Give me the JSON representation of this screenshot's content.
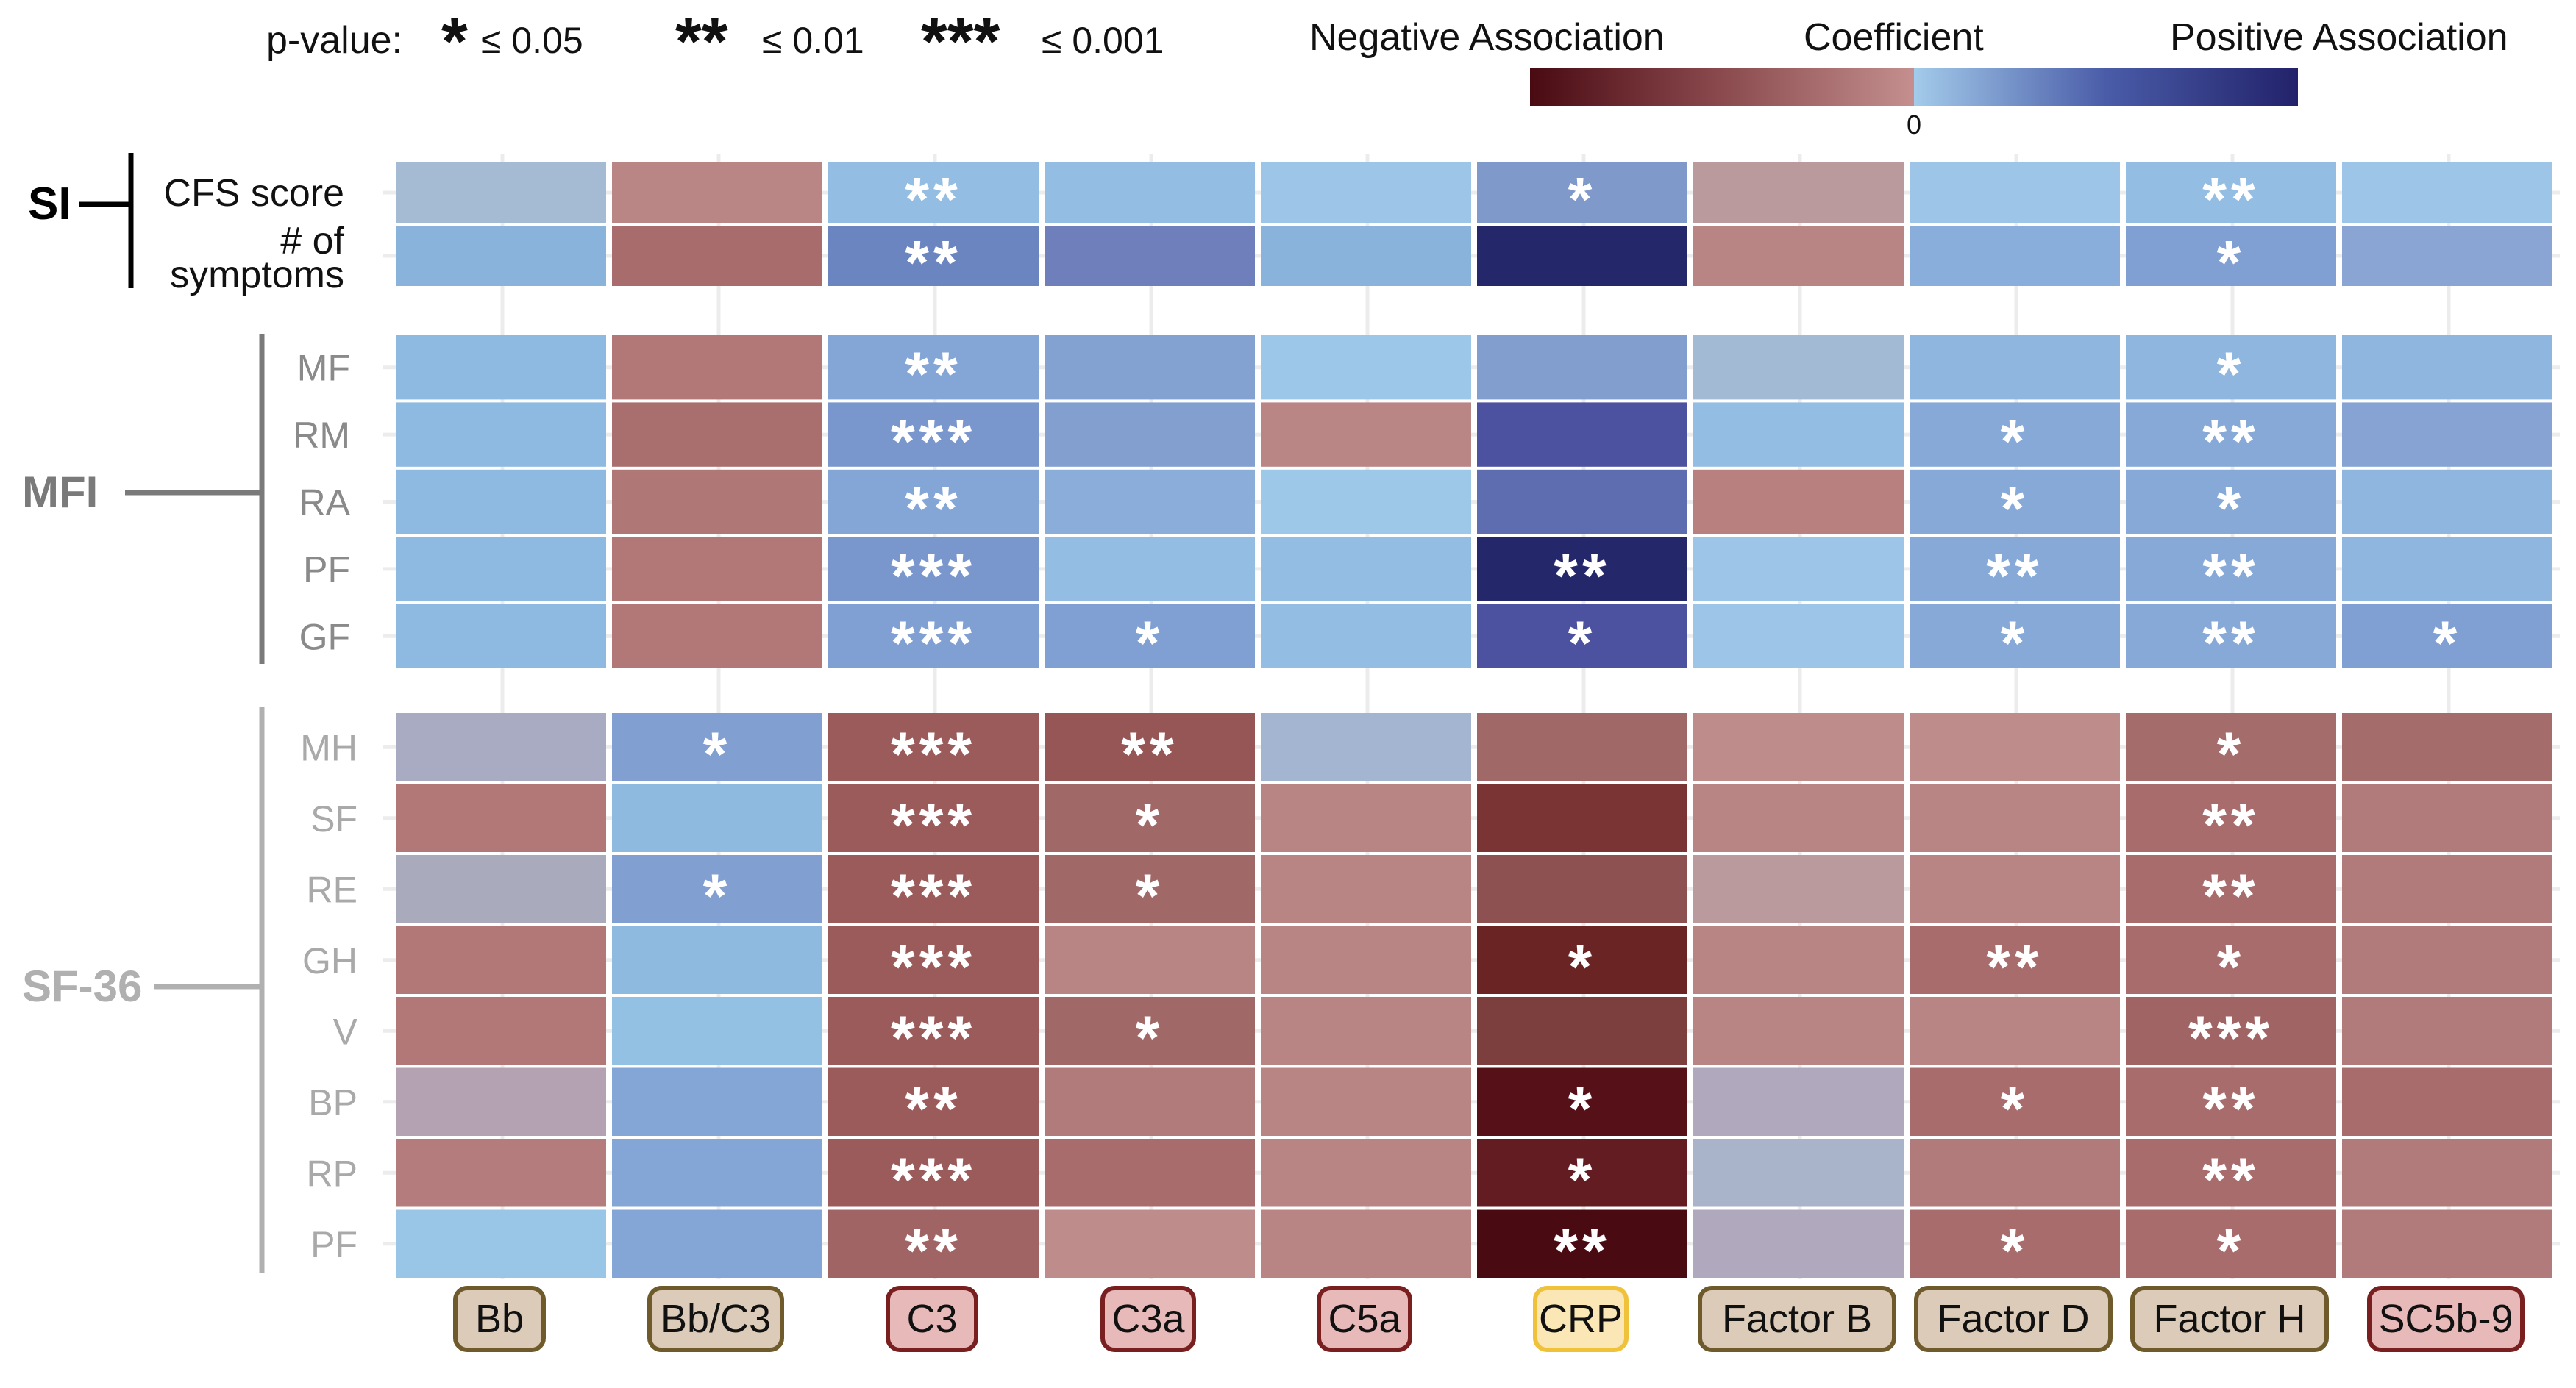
{
  "chart_data": {
    "type": "heatmap",
    "legend": {
      "pvalue_label": "p-value:",
      "pvalue_levels": [
        {
          "stars": "*",
          "threshold": "≤ 0.05"
        },
        {
          "stars": "**",
          "threshold": "≤ 0.01"
        },
        {
          "stars": "***",
          "threshold": "≤ 0.001"
        }
      ],
      "negative_label": "Negative Association",
      "coefficient_label": "Coefficient",
      "positive_label": "Positive Association",
      "zero_label": "0",
      "negative_colors": [
        "#4a0a12",
        "#8a4a4e",
        "#c48f8e"
      ],
      "positive_colors": [
        "#a3cbea",
        "#4a5ca8",
        "#22226a"
      ]
    },
    "columns": [
      {
        "label": "Bb",
        "border": "#6e5a2a",
        "fill": "#dccbb8"
      },
      {
        "label": "Bb/C3",
        "border": "#6e5a2a",
        "fill": "#dccbb8"
      },
      {
        "label": "C3",
        "border": "#7a1f1f",
        "fill": "#e7b9b8"
      },
      {
        "label": "C3a",
        "border": "#7a1f1f",
        "fill": "#e7b9b8"
      },
      {
        "label": "C5a",
        "border": "#7a1f1f",
        "fill": "#e7b9b8"
      },
      {
        "label": "CRP",
        "border": "#f0c23a",
        "fill": "#fbe6b5"
      },
      {
        "label": "Factor B",
        "border": "#6e5a2a",
        "fill": "#dccbb8"
      },
      {
        "label": "Factor D",
        "border": "#6e5a2a",
        "fill": "#dccbb8"
      },
      {
        "label": "Factor H",
        "border": "#6e5a2a",
        "fill": "#dccbb8"
      },
      {
        "label": "SC5b-9",
        "border": "#7a1f1f",
        "fill": "#e7b9b8"
      }
    ],
    "groups": [
      {
        "name": "SI",
        "rows": [
          {
            "label": "CFS score",
            "colors": [
              "#a5bad3",
              "#b98585",
              "#93bde2",
              "#93bde2",
              "#9cc5e7",
              "#8099cb",
              "#bb9a9e",
              "#9cc5e7",
              "#93bde2",
              "#9cc5e7"
            ],
            "stars": [
              "",
              "",
              "**",
              "",
              "",
              "*",
              "",
              "",
              "**",
              ""
            ]
          },
          {
            "label_lines": [
              "# of",
              "symptoms"
            ],
            "colors": [
              "#8ab3dc",
              "#a86c6c",
              "#6b85c0",
              "#6e7fbb",
              "#8ab3dc",
              "#25276b",
              "#b88484",
              "#8aaedb",
              "#809fd2",
              "#8aa5d4"
            ],
            "stars": [
              "",
              "",
              "**",
              "",
              "",
              "",
              "",
              "",
              "*",
              ""
            ]
          }
        ]
      },
      {
        "name": "MFI",
        "rows": [
          {
            "label": "MF",
            "colors": [
              "#8eb9e0",
              "#b27777",
              "#84a6d6",
              "#83a1d1",
              "#9cc7e8",
              "#819ecf",
              "#a2bad3",
              "#8eb6df",
              "#8eb6df",
              "#8eb6df"
            ],
            "stars": [
              "",
              "",
              "**",
              "",
              "",
              "",
              "",
              "",
              "*",
              ""
            ]
          },
          {
            "label": "RM",
            "colors": [
              "#8eb9e0",
              "#a96f6f",
              "#7997cd",
              "#829fd0",
              "#ba8585",
              "#4d52a0",
              "#93bde2",
              "#86a9d7",
              "#86a9d7",
              "#86a3d3"
            ],
            "stars": [
              "",
              "",
              "***",
              "",
              "",
              "",
              "",
              "*",
              "**",
              ""
            ]
          },
          {
            "label": "RA",
            "colors": [
              "#8eb9e0",
              "#b07777",
              "#84a6d6",
              "#8aaed9",
              "#9ec8e8",
              "#5e6cb0",
              "#b98080",
              "#86a9d7",
              "#86a9d7",
              "#8eb6df"
            ],
            "stars": [
              "",
              "",
              "**",
              "",
              "",
              "",
              "",
              "*",
              "*",
              ""
            ]
          },
          {
            "label": "PF",
            "colors": [
              "#8eb9e0",
              "#b27777",
              "#7997cd",
              "#93bde2",
              "#93bde2",
              "#25276b",
              "#9cc5e7",
              "#86a9d7",
              "#86a9d7",
              "#8eb6df"
            ],
            "stars": [
              "",
              "",
              "***",
              "",
              "",
              "**",
              "",
              "**",
              "**",
              ""
            ]
          },
          {
            "label": "GF",
            "colors": [
              "#8eb9e0",
              "#b27777",
              "#809fd2",
              "#809fd2",
              "#93bde2",
              "#4d52a0",
              "#9cc5e7",
              "#86a9d7",
              "#86a9d7",
              "#809fd2"
            ],
            "stars": [
              "",
              "",
              "***",
              "*",
              "",
              "*",
              "",
              "*",
              "**",
              "*"
            ]
          }
        ]
      },
      {
        "name": "SF-36",
        "rows": [
          {
            "label": "MH",
            "colors": [
              "#a9abc3",
              "#829fd2",
              "#9b5b5b",
              "#975656",
              "#a3b5d0",
              "#a16868",
              "#bf8c8c",
              "#bf8c8c",
              "#a56c6c",
              "#a56c6c"
            ],
            "stars": [
              "",
              "*",
              "***",
              "**",
              "",
              "",
              "",
              "",
              "*",
              ""
            ]
          },
          {
            "label": "SF",
            "colors": [
              "#b27777",
              "#8ebadf",
              "#9b5b5b",
              "#a16868",
              "#b88484",
              "#7b3434",
              "#b88484",
              "#b88484",
              "#a86c6c",
              "#b27b7b"
            ],
            "stars": [
              "",
              "",
              "***",
              "*",
              "",
              "",
              "",
              "",
              "**",
              ""
            ]
          },
          {
            "label": "RE",
            "colors": [
              "#aaaabd",
              "#829fd2",
              "#9b5b5b",
              "#a16868",
              "#b88484",
              "#8e5151",
              "#bb9a9e",
              "#b88484",
              "#a86c6c",
              "#b27b7b"
            ],
            "stars": [
              "",
              "*",
              "***",
              "*",
              "",
              "",
              "",
              "",
              "**",
              ""
            ]
          },
          {
            "label": "GH",
            "colors": [
              "#b27777",
              "#8ebadf",
              "#9b5b5b",
              "#b88484",
              "#b88484",
              "#6a2424",
              "#b88484",
              "#a86c6c",
              "#a86c6c",
              "#b27b7b"
            ],
            "stars": [
              "",
              "",
              "***",
              "",
              "",
              "*",
              "",
              "**",
              "*",
              ""
            ]
          },
          {
            "label": "V",
            "colors": [
              "#b27777",
              "#93c1e4",
              "#9b5b5b",
              "#a16868",
              "#b88484",
              "#7d3e3e",
              "#b88484",
              "#b88484",
              "#a16464",
              "#b27b7b"
            ],
            "stars": [
              "",
              "",
              "***",
              "*",
              "",
              "",
              "",
              "",
              "***",
              ""
            ]
          },
          {
            "label": "BP",
            "colors": [
              "#b4a2b2",
              "#84a6d6",
              "#9b5b5b",
              "#b27b7b",
              "#b88484",
              "#561018",
              "#b0a9bd",
              "#a86c6c",
              "#a86c6c",
              "#a86c6c"
            ],
            "stars": [
              "",
              "",
              "**",
              "",
              "",
              "*",
              "",
              "*",
              "**",
              ""
            ]
          },
          {
            "label": "RP",
            "colors": [
              "#b47c7c",
              "#84a6d6",
              "#9b5b5b",
              "#a86c6c",
              "#b88484",
              "#631c22",
              "#a9b3c9",
              "#b27b7b",
              "#a86c6c",
              "#b27b7b"
            ],
            "stars": [
              "",
              "",
              "***",
              "",
              "",
              "*",
              "",
              "",
              "**",
              ""
            ]
          },
          {
            "label": "PF",
            "colors": [
              "#99c5e6",
              "#84a6d6",
              "#a16464",
              "#bf8c8c",
              "#b88484",
              "#4a0a12",
              "#b0a9bd",
              "#a86c6c",
              "#a86c6c",
              "#b27b7b"
            ],
            "stars": [
              "",
              "",
              "**",
              "",
              "",
              "**",
              "",
              "*",
              "*",
              ""
            ]
          }
        ]
      }
    ]
  }
}
